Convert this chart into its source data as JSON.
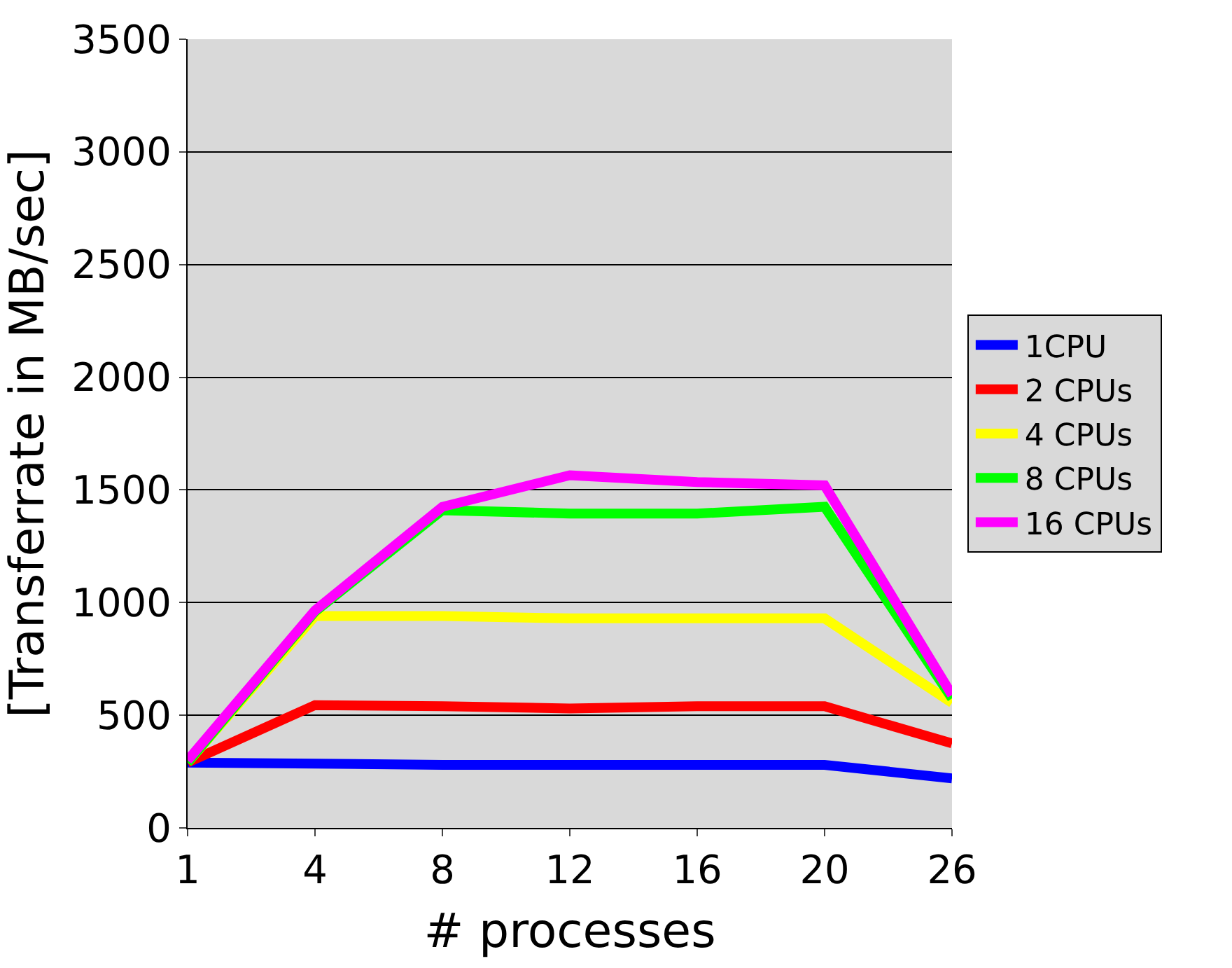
{
  "chart_data": {
    "type": "line",
    "xlabel": "# processes",
    "ylabel": "[Transferrate in MB/sec]",
    "categories": [
      "1",
      "4",
      "8",
      "12",
      "16",
      "20",
      "26"
    ],
    "series": [
      {
        "name": "1CPU",
        "color": "#0000ff",
        "values": [
          290,
          285,
          280,
          280,
          280,
          280,
          220
        ]
      },
      {
        "name": "2 CPUs",
        "color": "#ff0000",
        "values": [
          290,
          545,
          540,
          530,
          540,
          540,
          375
        ]
      },
      {
        "name": "4 CPUs",
        "color": "#ffff00",
        "values": [
          290,
          940,
          940,
          930,
          930,
          930,
          555
        ]
      },
      {
        "name": "8 CPUs",
        "color": "#00ff00",
        "values": [
          290,
          960,
          1410,
          1395,
          1395,
          1425,
          575
        ]
      },
      {
        "name": "16 CPUs",
        "color": "#ff00ff",
        "values": [
          300,
          965,
          1425,
          1565,
          1535,
          1520,
          590
        ]
      }
    ],
    "ylim": [
      0,
      3500
    ],
    "yticks": [
      0,
      500,
      1000,
      1500,
      2000,
      2500,
      3000,
      3500
    ],
    "grid": "y",
    "legend": "right",
    "marker": "none",
    "line_style": "solid"
  }
}
